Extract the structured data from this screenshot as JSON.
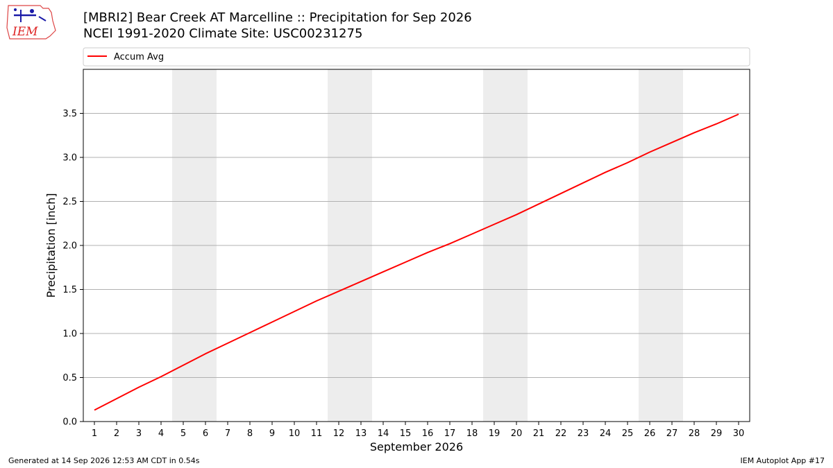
{
  "header": {
    "logo_text": "IEM",
    "title_line1": "[MBRI2] Bear Creek  AT Marcelline :: Precipitation for Sep 2026",
    "title_line2": "NCEI 1991-2020 Climate Site: USC00231275"
  },
  "footer": {
    "generated": "Generated at 14 Sep 2026 12:53 AM CDT in 0.54s",
    "app": "IEM Autoplot App #17"
  },
  "colors": {
    "series": "#ff0000",
    "weekend_band": "#ededed",
    "grid": "#b0b0b0"
  },
  "chart_data": {
    "type": "line",
    "xlabel": "September 2026",
    "ylabel": "Precipitation [inch]",
    "xlim": [
      0.5,
      30.5
    ],
    "ylim": [
      0.0,
      4.0
    ],
    "yticks": [
      "0.0",
      "0.5",
      "1.0",
      "1.5",
      "2.0",
      "2.5",
      "3.0",
      "3.5"
    ],
    "ytick_values": [
      0.0,
      0.5,
      1.0,
      1.5,
      2.0,
      2.5,
      3.0,
      3.5
    ],
    "x": [
      1,
      2,
      3,
      4,
      5,
      6,
      7,
      8,
      9,
      10,
      11,
      12,
      13,
      14,
      15,
      16,
      17,
      18,
      19,
      20,
      21,
      22,
      23,
      24,
      25,
      26,
      27,
      28,
      29,
      30
    ],
    "xtick_labels": [
      "1",
      "2",
      "3",
      "4",
      "5",
      "6",
      "7",
      "8",
      "9",
      "10",
      "11",
      "12",
      "13",
      "14",
      "15",
      "16",
      "17",
      "18",
      "19",
      "20",
      "21",
      "22",
      "23",
      "24",
      "25",
      "26",
      "27",
      "28",
      "29",
      "30"
    ],
    "weekend_bands": [
      [
        4.5,
        6.5
      ],
      [
        11.5,
        13.5
      ],
      [
        18.5,
        20.5
      ],
      [
        25.5,
        27.5
      ]
    ],
    "grid": "horizontal",
    "legend_position": "top",
    "series": [
      {
        "name": "Accum Avg",
        "values": [
          0.13,
          0.26,
          0.39,
          0.51,
          0.64,
          0.77,
          0.89,
          1.01,
          1.13,
          1.25,
          1.37,
          1.48,
          1.59,
          1.7,
          1.81,
          1.92,
          2.02,
          2.13,
          2.24,
          2.35,
          2.47,
          2.59,
          2.71,
          2.83,
          2.94,
          3.06,
          3.17,
          3.28,
          3.38,
          3.49
        ]
      }
    ]
  }
}
